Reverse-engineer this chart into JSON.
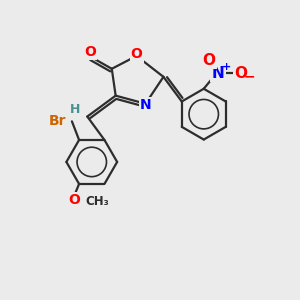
{
  "bg_color": "#ebebeb",
  "bond_color": "#2d2d2d",
  "bond_width": 1.6,
  "atom_colors": {
    "O": "#ff0000",
    "N": "#0000ff",
    "Br": "#cc6600",
    "H": "#4a9090",
    "C": "#2d2d2d"
  },
  "font_size": 10,
  "fig_width": 3.0,
  "fig_height": 3.0,
  "dpi": 100
}
